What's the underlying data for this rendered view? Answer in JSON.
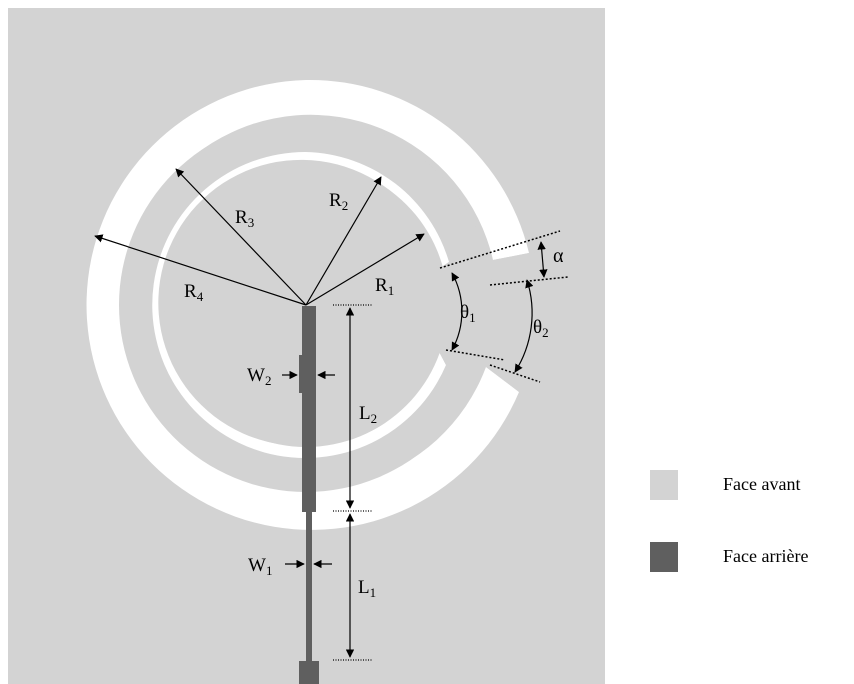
{
  "colors": {
    "front": "#d3d3d3",
    "back": "#5f5f5f",
    "slot": "#ffffff",
    "annotation": "#000000"
  },
  "labels": {
    "R1": {
      "main": "R",
      "sub": "1"
    },
    "R2": {
      "main": "R",
      "sub": "2"
    },
    "R3": {
      "main": "R",
      "sub": "3"
    },
    "R4": {
      "main": "R",
      "sub": "4"
    },
    "theta1": {
      "main": "θ",
      "sub": "1"
    },
    "theta2": {
      "main": "θ",
      "sub": "2"
    },
    "alpha": "α",
    "W1": {
      "main": "W",
      "sub": "1"
    },
    "W2": {
      "main": "W",
      "sub": "2"
    },
    "L1": {
      "main": "L",
      "sub": "1"
    },
    "L2": {
      "main": "L",
      "sub": "2"
    }
  },
  "legend": [
    {
      "label": "Face avant",
      "color": "#d3d3d3"
    },
    {
      "label": "Face arrière",
      "color": "#5f5f5f"
    }
  ]
}
